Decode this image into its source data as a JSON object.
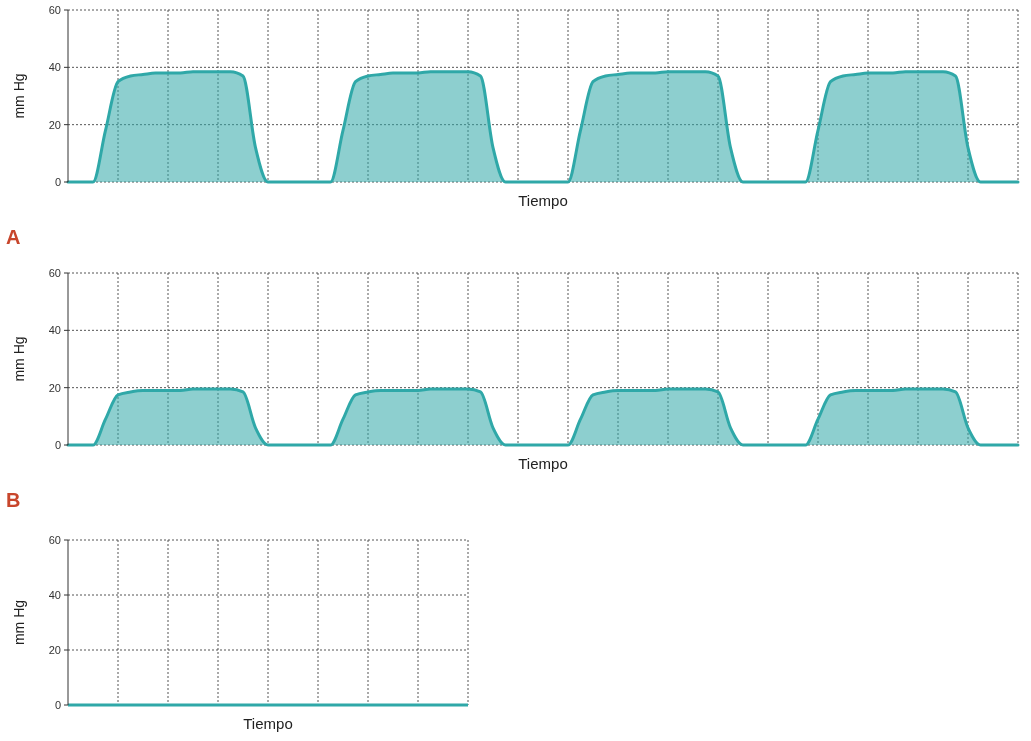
{
  "chart_data": [
    {
      "type": "area",
      "xlabel": "Tiempo",
      "ylabel": "mm Hg",
      "annotations": [
        "A"
      ],
      "categories": [
        null,
        null,
        null,
        null,
        null,
        null,
        null,
        null,
        null,
        null,
        null,
        null,
        null,
        null,
        null,
        null,
        null,
        null,
        null,
        null,
        null,
        null,
        null,
        null,
        null,
        null,
        null,
        null,
        null,
        null,
        null,
        null,
        null,
        null,
        null,
        null,
        null,
        null,
        null,
        null,
        null,
        null,
        null,
        null,
        null,
        null,
        null,
        null,
        null,
        null,
        null,
        null,
        null,
        null,
        null,
        null,
        null,
        null,
        null,
        null,
        null,
        null,
        null,
        null,
        null,
        null,
        null,
        null,
        null,
        null,
        null,
        null,
        null,
        null,
        null,
        null,
        null
      ],
      "series": [
        {
          "color": "#2fa8a8",
          "values": [
            0,
            0,
            0,
            18,
            35,
            37,
            37.5,
            38,
            38,
            38,
            38.5,
            38.5,
            38.5,
            38.5,
            37,
            12,
            0,
            0,
            0,
            0,
            0,
            0,
            18,
            35,
            37,
            37.5,
            38,
            38,
            38,
            38.5,
            38.5,
            38.5,
            38.5,
            37,
            12,
            0,
            0,
            0,
            0,
            0,
            0,
            18,
            35,
            37,
            37.5,
            38,
            38,
            38,
            38.5,
            38.5,
            38.5,
            38.5,
            37,
            12,
            0,
            0,
            0,
            0,
            0,
            0,
            18,
            35,
            37,
            37.5,
            38,
            38,
            38,
            38.5,
            38.5,
            38.5,
            38.5,
            37,
            12,
            0,
            0,
            0,
            0
          ]
        }
      ],
      "ylim": [
        0,
        60
      ],
      "yticks": [
        0,
        20,
        40,
        60
      ],
      "grid": true
    },
    {
      "type": "area",
      "xlabel": "Tiempo",
      "ylabel": "mm Hg",
      "annotations": [
        "B"
      ],
      "categories": [
        null,
        null,
        null,
        null,
        null,
        null,
        null,
        null,
        null,
        null,
        null,
        null,
        null,
        null,
        null,
        null,
        null,
        null,
        null,
        null,
        null,
        null,
        null,
        null,
        null,
        null,
        null,
        null,
        null,
        null,
        null,
        null,
        null,
        null,
        null,
        null,
        null,
        null,
        null,
        null,
        null,
        null,
        null,
        null,
        null,
        null,
        null,
        null,
        null,
        null,
        null,
        null,
        null,
        null,
        null,
        null,
        null,
        null,
        null,
        null,
        null,
        null,
        null,
        null,
        null,
        null,
        null,
        null,
        null,
        null,
        null,
        null,
        null,
        null,
        null,
        null,
        null
      ],
      "series": [
        {
          "color": "#2fa8a8",
          "values": [
            0,
            0,
            0,
            9,
            17.5,
            18.5,
            19,
            19,
            19,
            19,
            19.5,
            19.5,
            19.5,
            19.5,
            18.5,
            6,
            0,
            0,
            0,
            0,
            0,
            0,
            9,
            17.5,
            18.5,
            19,
            19,
            19,
            19,
            19.5,
            19.5,
            19.5,
            19.5,
            18.5,
            6,
            0,
            0,
            0,
            0,
            0,
            0,
            9,
            17.5,
            18.5,
            19,
            19,
            19,
            19,
            19.5,
            19.5,
            19.5,
            19.5,
            18.5,
            6,
            0,
            0,
            0,
            0,
            0,
            0,
            9,
            17.5,
            18.5,
            19,
            19,
            19,
            19,
            19.5,
            19.5,
            19.5,
            19.5,
            18.5,
            6,
            0,
            0,
            0,
            0
          ]
        }
      ],
      "ylim": [
        0,
        60
      ],
      "yticks": [
        0,
        20,
        40,
        60
      ],
      "grid": true
    },
    {
      "type": "line",
      "xlabel": "Tiempo",
      "ylabel": "mm Hg",
      "categories": [
        null,
        null,
        null,
        null,
        null,
        null,
        null,
        null,
        null,
        null,
        null,
        null,
        null,
        null,
        null,
        null,
        null,
        null,
        null,
        null,
        null,
        null,
        null,
        null,
        null,
        null,
        null,
        null,
        null,
        null,
        null,
        null,
        null
      ],
      "series": [
        {
          "color": "#2fa8a8",
          "values": [
            0,
            0,
            0,
            0,
            0,
            0,
            0,
            0,
            0,
            0,
            0,
            0,
            0,
            0,
            0,
            0,
            0,
            0,
            0,
            0,
            0,
            0,
            0,
            0,
            0,
            0,
            0,
            0,
            0,
            0,
            0,
            0,
            0
          ]
        }
      ],
      "ylim": [
        0,
        60
      ],
      "yticks": [
        0,
        20,
        40,
        60
      ],
      "grid": true
    }
  ]
}
